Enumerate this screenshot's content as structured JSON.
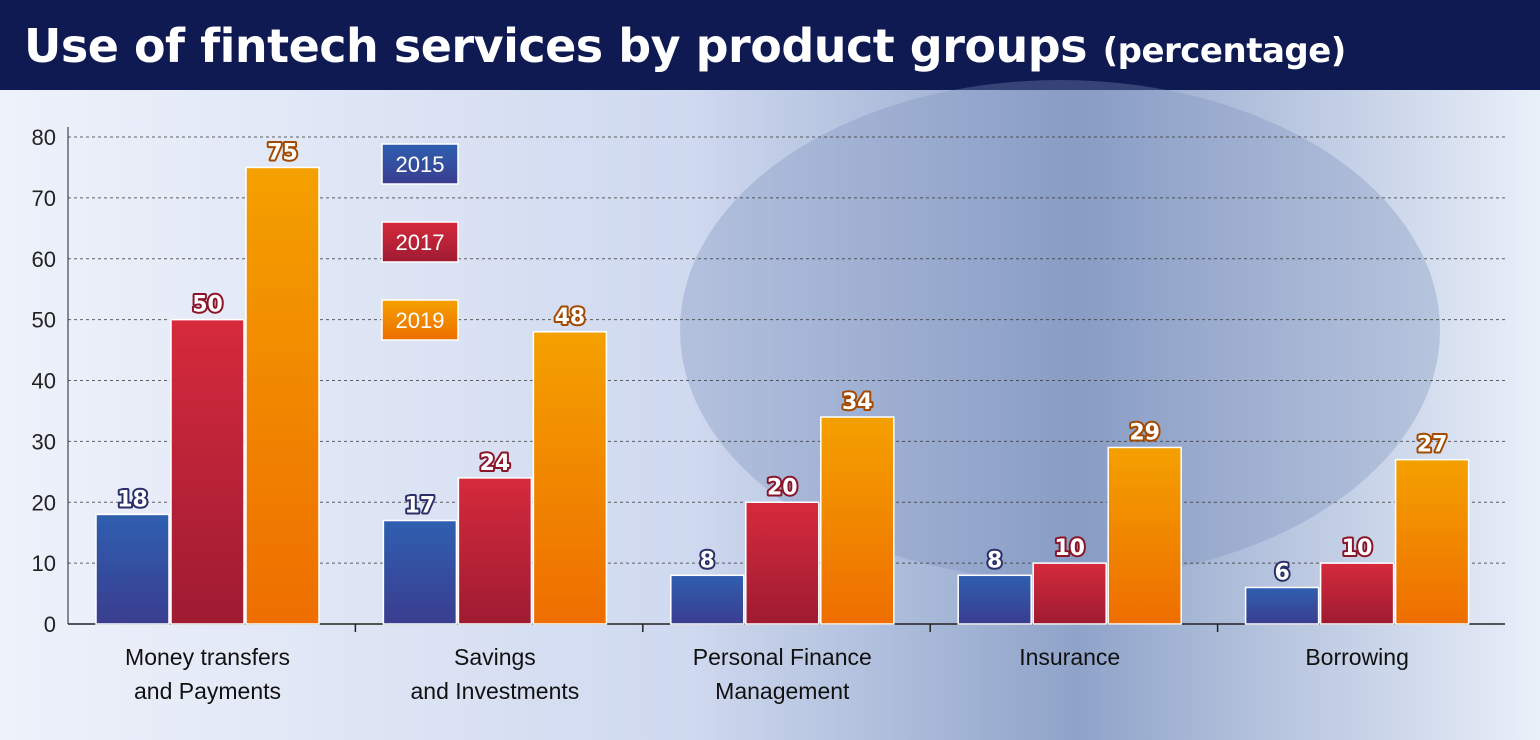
{
  "header": {
    "title": "Use of fintech services by product groups",
    "subtitle": "(percentage)"
  },
  "colors": {
    "header_bg": "#0f1a52",
    "series_2015": "#2f5fb0",
    "series_2017": "#d62a3c",
    "series_2019": "#f4a000"
  },
  "chart_data": {
    "type": "bar",
    "title": "Use of fintech services by product groups (percentage)",
    "xlabel": "",
    "ylabel": "",
    "ylim": [
      0,
      80
    ],
    "yticks": [
      0,
      10,
      20,
      30,
      40,
      50,
      60,
      70,
      80
    ],
    "grid": "horizontal dashed",
    "legend_position": "top-left",
    "categories": [
      [
        "Money transfers",
        "and Payments"
      ],
      [
        "Savings",
        "and Investments"
      ],
      [
        "Personal Finance",
        "Management"
      ],
      [
        "Insurance"
      ],
      [
        "Borrowing"
      ]
    ],
    "series": [
      {
        "name": "2015",
        "values": [
          18,
          17,
          8,
          8,
          6
        ]
      },
      {
        "name": "2017",
        "values": [
          50,
          24,
          20,
          10,
          10
        ]
      },
      {
        "name": "2019",
        "values": [
          75,
          48,
          34,
          29,
          27
        ]
      }
    ]
  }
}
